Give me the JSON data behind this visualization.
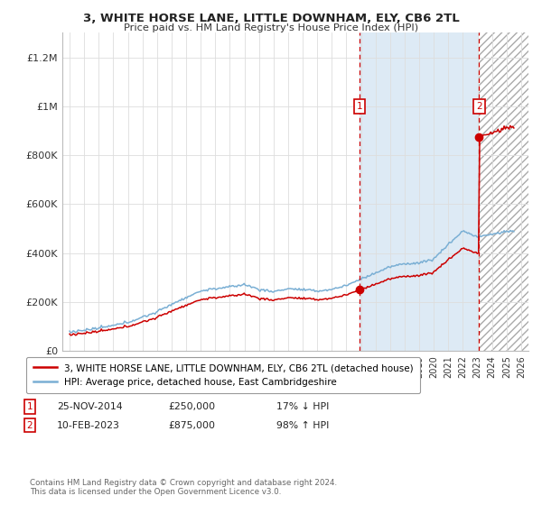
{
  "title": "3, WHITE HORSE LANE, LITTLE DOWNHAM, ELY, CB6 2TL",
  "subtitle": "Price paid vs. HM Land Registry's House Price Index (HPI)",
  "legend_line1": "3, WHITE HORSE LANE, LITTLE DOWNHAM, ELY, CB6 2TL (detached house)",
  "legend_line2": "HPI: Average price, detached house, East Cambridgeshire",
  "annotation1_date": "25-NOV-2014",
  "annotation1_price": "£250,000",
  "annotation1_hpi": "17% ↓ HPI",
  "annotation2_date": "10-FEB-2023",
  "annotation2_price": "£875,000",
  "annotation2_hpi": "98% ↑ HPI",
  "sale1_year": 2014.9,
  "sale1_price": 250000,
  "sale2_year": 2023.1,
  "sale2_price": 875000,
  "hpi_color": "#7aafd4",
  "sold_color": "#cc0000",
  "background_color": "#ffffff",
  "shaded_color": "#ddeaf5",
  "copyright": "Contains HM Land Registry data © Crown copyright and database right 2024.\nThis data is licensed under the Open Government Licence v3.0.",
  "ylim_max": 1300000,
  "xlim_start": 1994.5,
  "xlim_end": 2026.5
}
